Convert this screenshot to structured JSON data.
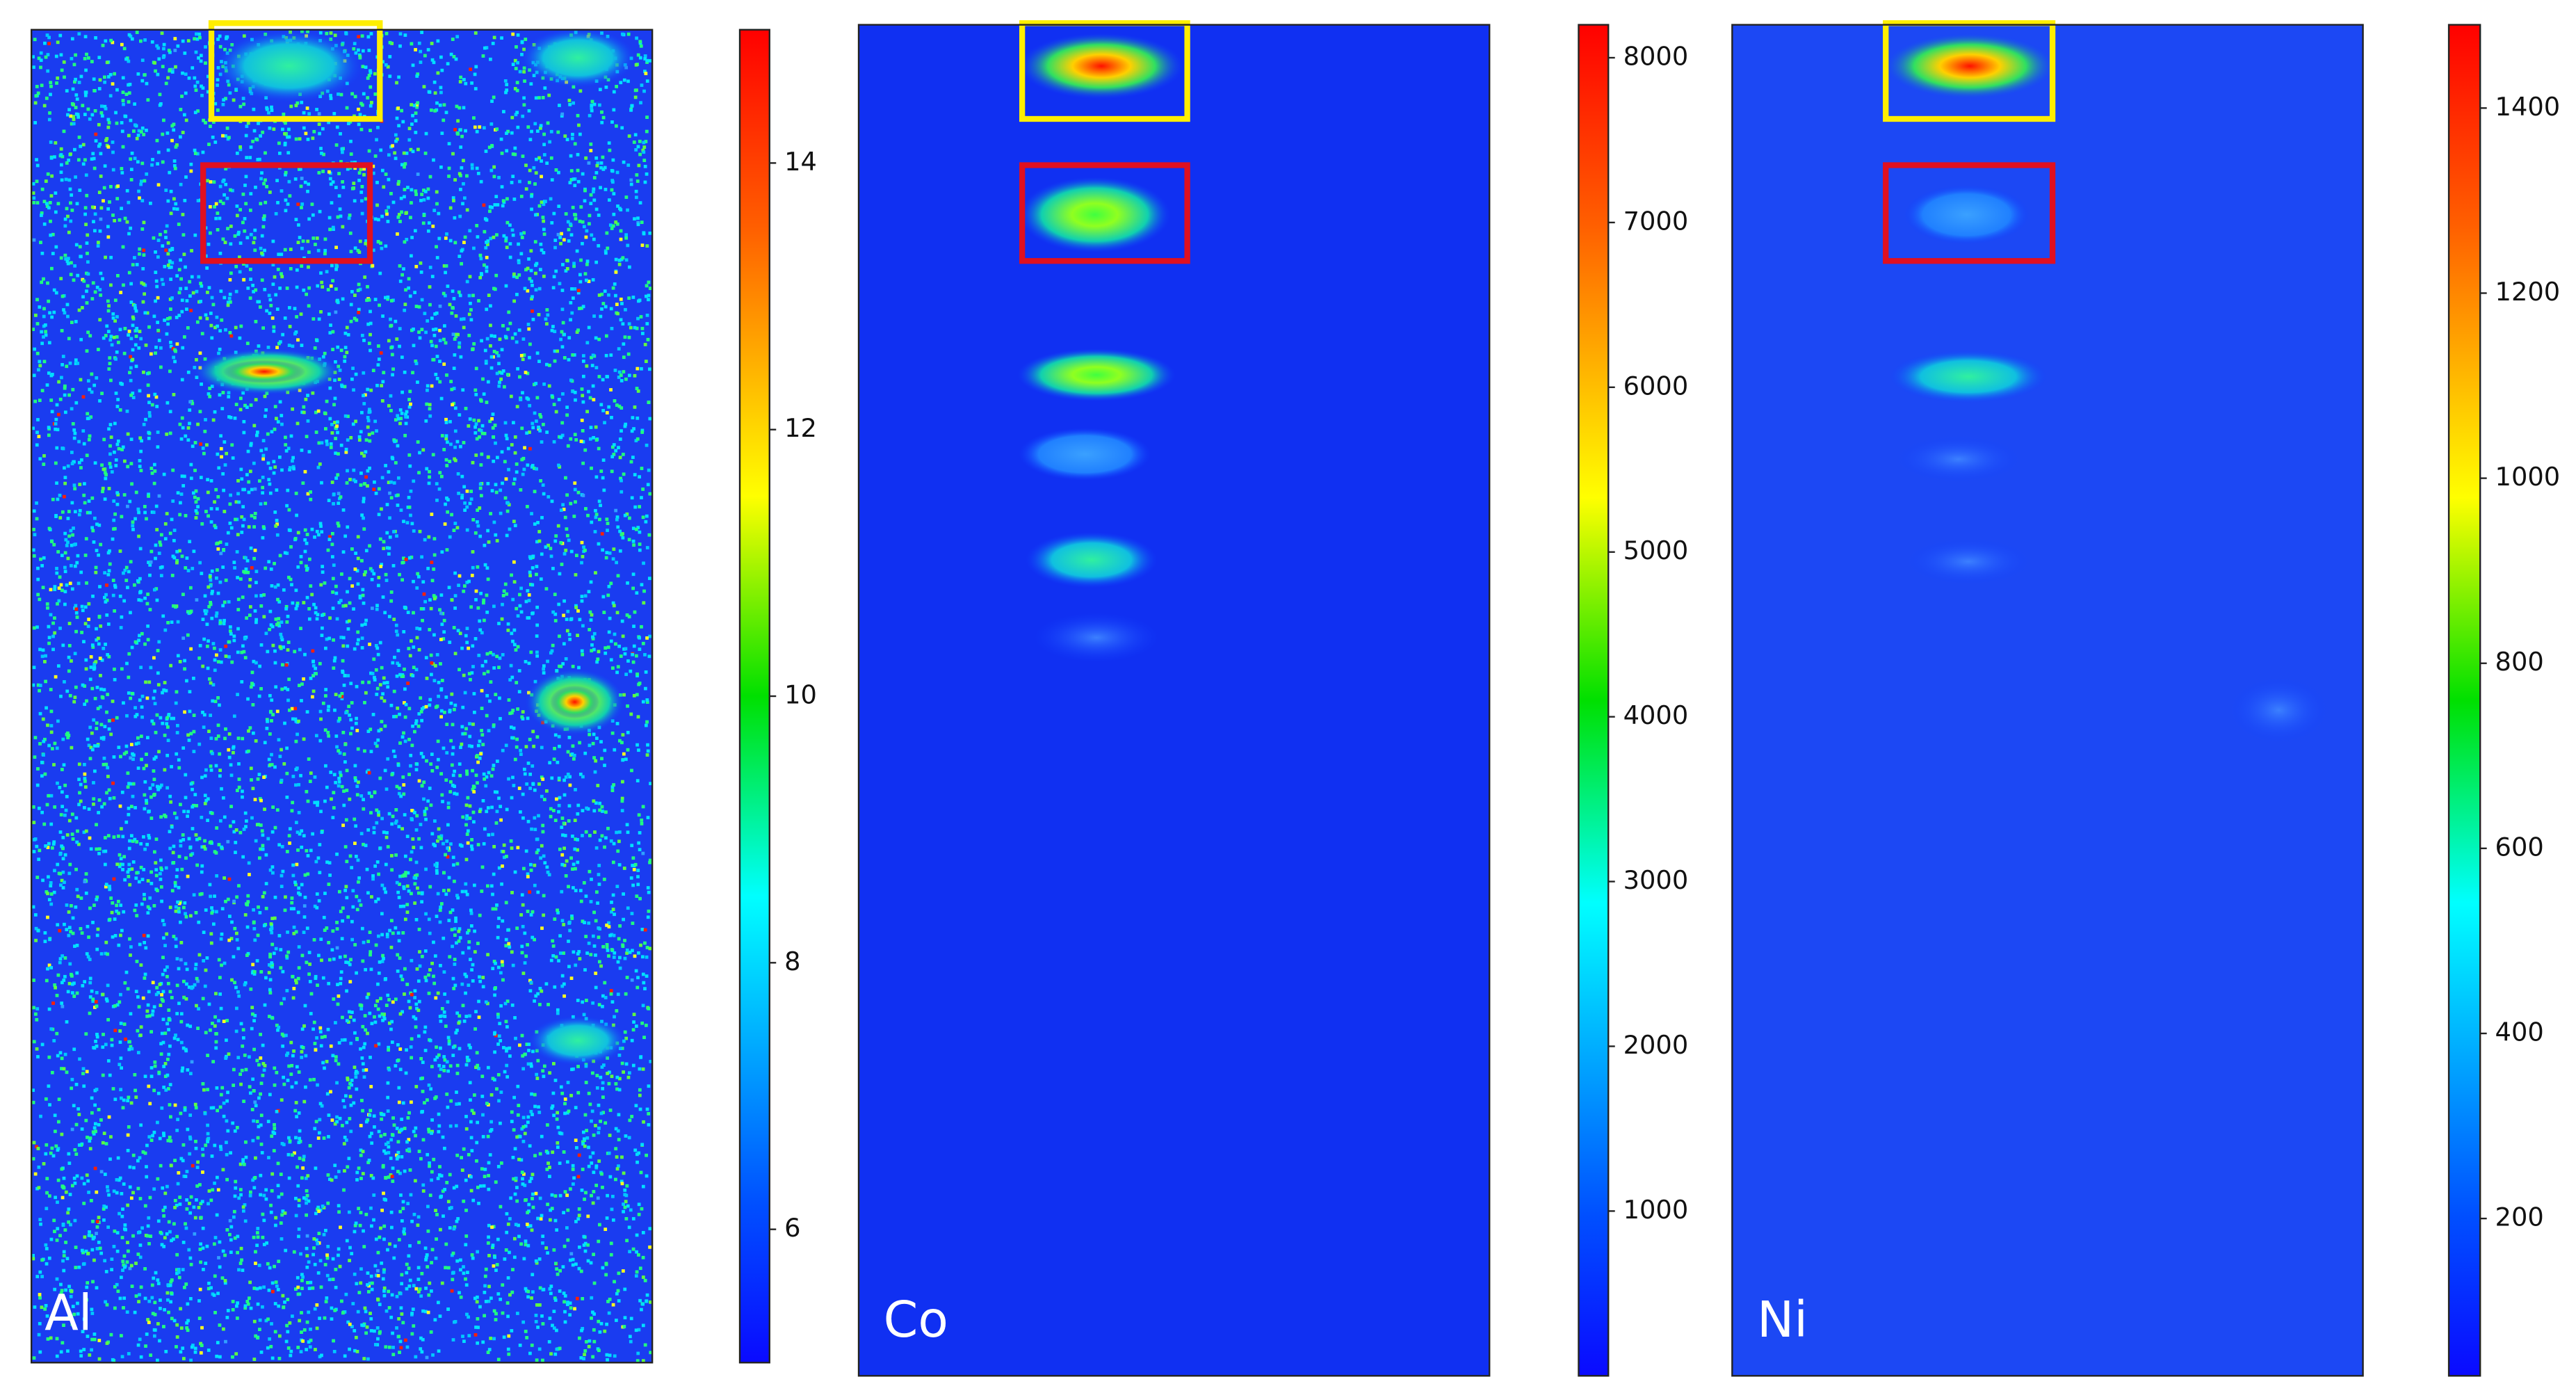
{
  "chart_data": [
    {
      "type": "heatmap",
      "label": "Al",
      "colormap": "jet",
      "ylim": [
        5,
        15
      ],
      "yticks": [
        6,
        8,
        10,
        12,
        14
      ]
    },
    {
      "type": "heatmap",
      "label": "Co",
      "colormap": "jet",
      "ylim": [
        0,
        8200
      ],
      "yticks": [
        1000,
        2000,
        3000,
        4000,
        5000,
        6000,
        7000,
        8000
      ]
    },
    {
      "type": "heatmap",
      "label": "Ni",
      "colormap": "jet",
      "ylim": [
        30,
        1490
      ],
      "yticks": [
        200,
        400,
        600,
        800,
        1000,
        1200,
        1400
      ]
    }
  ]
}
